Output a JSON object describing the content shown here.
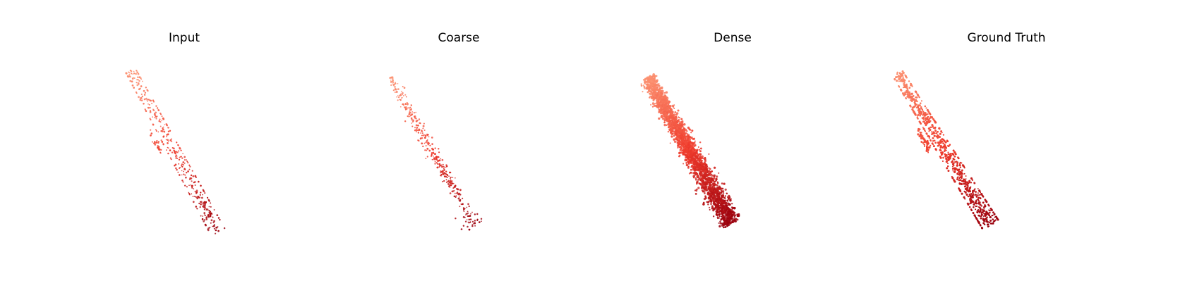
{
  "figure": {
    "panels": [
      {
        "title": "Input",
        "style": "sparse-strip",
        "point_count": 420
      },
      {
        "title": "Coarse",
        "style": "scattered",
        "point_count": 380
      },
      {
        "title": "Dense",
        "style": "dense-blob",
        "point_count": 2400
      },
      {
        "title": "Ground Truth",
        "style": "complete",
        "point_count": 2200
      }
    ],
    "colormap": {
      "name": "Reds",
      "light": "#fc9272",
      "mid": "#ef3b2c",
      "dark": "#99000d"
    }
  }
}
